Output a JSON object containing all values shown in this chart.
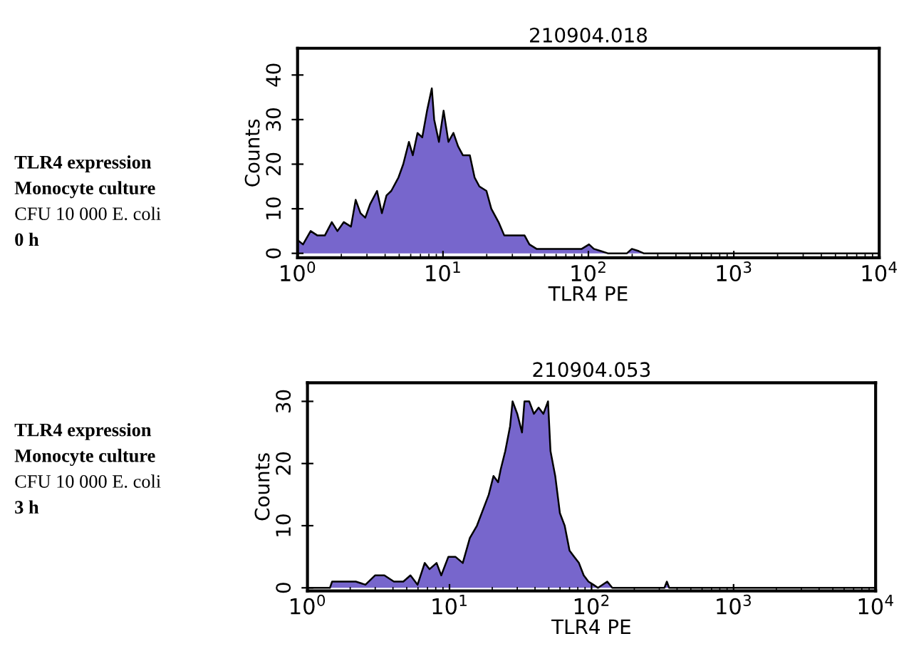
{
  "chart_data": [
    {
      "type": "area",
      "title": "210904.018",
      "xlabel": "TLR4 PE",
      "ylabel": "Counts",
      "log": "x",
      "annotations": [
        "TLR4 expression",
        "Monocyte culture",
        "CFU 10 000 E. coli",
        "0 h"
      ],
      "xlim": [
        1,
        10000
      ],
      "xticks": [
        {
          "value": 1,
          "label": "10$^{0}$"
        },
        {
          "value": 10,
          "label": "10$^{1}$"
        },
        {
          "value": 100,
          "label": "10$^{2}$"
        },
        {
          "value": 1000,
          "label": "10$^{3}$"
        },
        {
          "value": 10000,
          "label": "10$^{4}$"
        }
      ],
      "ylim": [
        -1,
        46
      ],
      "yticks": [
        0,
        10,
        20,
        30,
        40
      ],
      "grid": false,
      "legend": false,
      "series": [
        {
          "color": "#7766cc",
          "x": [
            1.0,
            1.09,
            1.23,
            1.37,
            1.54,
            1.72,
            1.88,
            2.08,
            2.33,
            2.51,
            2.71,
            2.92,
            3.15,
            3.52,
            3.8,
            4.09,
            4.41,
            4.94,
            5.33,
            5.83,
            6.2,
            6.68,
            7.2,
            7.77,
            8.38,
            8.7,
            9.38,
            10.1,
            10.9,
            11.8,
            12.7,
            13.7,
            15.3,
            16.5,
            17.8,
            19.9,
            21.5,
            24.1,
            26.4,
            29.0,
            32.5,
            36.4,
            39.3,
            44.0,
            51.2,
            69.2,
            80.4,
            90.0,
            101,
            109,
            122,
            136,
            184,
            199,
            222,
            240,
            10000
          ],
          "values": [
            3,
            2,
            5,
            4,
            4,
            7,
            5,
            7,
            6,
            12,
            9,
            8,
            11,
            14,
            9,
            13,
            14,
            17,
            20,
            25,
            22,
            27,
            26,
            32,
            37,
            30,
            25,
            32,
            25,
            27,
            24,
            22,
            22,
            17,
            15,
            14,
            10,
            7,
            4,
            4,
            4,
            4,
            2,
            1,
            1,
            1,
            1,
            1,
            2,
            1,
            0.5,
            0,
            0,
            1,
            0.5,
            0,
            0
          ]
        }
      ]
    },
    {
      "type": "area",
      "title": "210904.053",
      "xlabel": "TLR4 PE",
      "ylabel": "Counts",
      "log": "x",
      "annotations": [
        "TLR4 expression",
        "Monocyte culture",
        "CFU 10 000 E. coli",
        "3 h"
      ],
      "xlim": [
        1,
        10000
      ],
      "xticks": [
        {
          "value": 1,
          "label": "10$^{0}$"
        },
        {
          "value": 10,
          "label": "10$^{1}$"
        },
        {
          "value": 100,
          "label": "10$^{2}$"
        },
        {
          "value": 1000,
          "label": "10$^{3}$"
        },
        {
          "value": 10000,
          "label": "10$^{4}$"
        }
      ],
      "ylim": [
        -0.5,
        33
      ],
      "yticks": [
        0,
        10,
        20,
        30
      ],
      "grid": false,
      "legend": false,
      "series": [
        {
          "color": "#7766cc",
          "x": [
            1,
            1.44,
            1.49,
            1.74,
            2.19,
            2.56,
            2.99,
            3.48,
            4.06,
            4.73,
            5.31,
            5.96,
            6.69,
            7.23,
            8.11,
            8.75,
            9.82,
            11.0,
            12.4,
            13.9,
            15.6,
            17.5,
            18.9,
            20.4,
            22.0,
            22.9,
            24.7,
            26.7,
            27.8,
            30.0,
            32.4,
            33.7,
            36.4,
            39.3,
            42.4,
            45.8,
            49.4,
            51.4,
            55.5,
            59.9,
            64.7,
            70.0,
            75.5,
            81.5,
            88.1,
            95.1,
            103,
            111,
            129,
            140,
            326,
            339,
            352,
            10000
          ],
          "values": [
            0,
            0,
            1,
            1,
            1,
            0.5,
            2,
            2,
            1,
            1,
            2,
            0.5,
            4,
            3,
            4,
            2,
            5,
            5,
            4,
            8,
            10,
            13,
            15,
            18,
            17,
            19,
            22,
            26,
            30,
            28,
            25,
            30,
            30,
            28,
            29,
            28,
            30,
            22,
            18,
            12,
            10,
            6,
            5,
            4,
            2,
            1,
            0.5,
            0,
            1,
            0,
            0,
            1,
            0,
            0
          ]
        }
      ]
    }
  ]
}
